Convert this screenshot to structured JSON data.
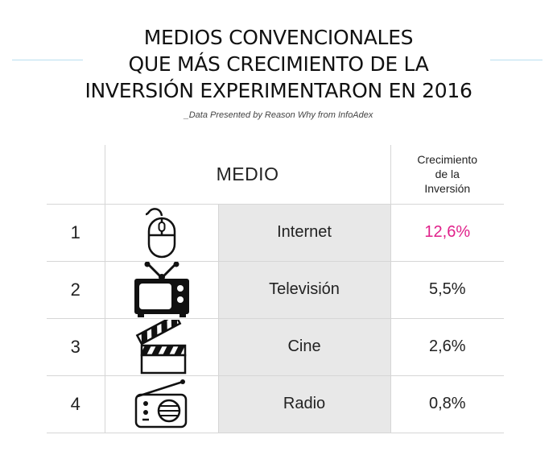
{
  "title": {
    "line1": "MEDIOS CONVENCIONALES",
    "line2": "QUE MÁS CRECIMIENTO DE LA",
    "line3": "INVERSIÓN EXPERIMENTARON EN 2016"
  },
  "subtitle": "_Data Presented by Reason Why from InfoAdex",
  "colors": {
    "accent": "#e0218a",
    "name_bg": "#e8e8e8",
    "deco_line": "#b9dff0"
  },
  "chart_data": {
    "type": "table",
    "columns": [
      "MEDIO",
      "Crecimiento de la Inversión"
    ],
    "header": {
      "medio": "MEDIO",
      "growth_line1": "Crecimiento",
      "growth_line2": "de la",
      "growth_line3": "Inversión"
    },
    "rows": [
      {
        "rank": "1",
        "icon": "mouse-icon",
        "name": "Internet",
        "value": "12,6%",
        "highlight": true
      },
      {
        "rank": "2",
        "icon": "tv-icon",
        "name": "Televisión",
        "value": "5,5%",
        "highlight": false
      },
      {
        "rank": "3",
        "icon": "clapperboard-icon",
        "name": "Cine",
        "value": "2,6%",
        "highlight": false
      },
      {
        "rank": "4",
        "icon": "radio-icon",
        "name": "Radio",
        "value": "0,8%",
        "highlight": false
      }
    ]
  }
}
